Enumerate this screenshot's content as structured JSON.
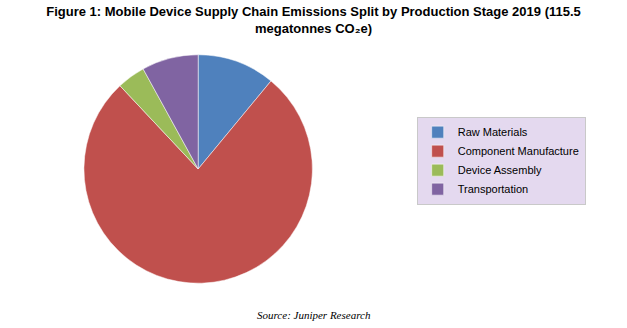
{
  "chart_data": {
    "type": "pie",
    "title": "Figure 1: Mobile Device Supply Chain Emissions Split by Production Stage 2019 (115.5\nmegatonnes CO₂e)",
    "categories": [
      "Raw Materials",
      "Component Manufacture",
      "Device Assembly",
      "Transportation"
    ],
    "values": [
      11,
      77,
      4,
      8
    ],
    "colors": [
      "#4f81bd",
      "#c0504d",
      "#9bbb59",
      "#8064a2"
    ],
    "legend": "right",
    "data_labels": false,
    "annotations": [
      "Source: Juniper Research"
    ]
  }
}
